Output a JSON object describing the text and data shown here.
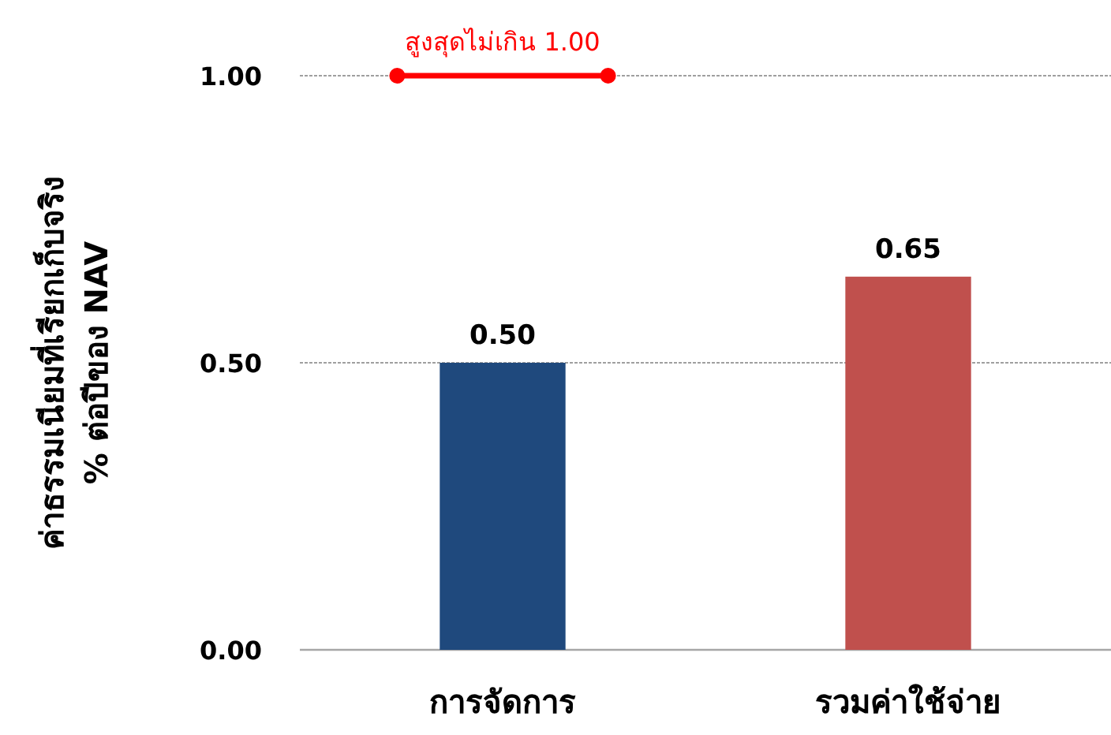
{
  "chart_data": {
    "type": "bar",
    "ylabel": "ค่าธรรมเนียมที่เรียกเก็บจริง\n% ต่อปีของ NAV",
    "categories": [
      "การจัดการ",
      "รวมค่าใช้จ่าย"
    ],
    "values": [
      0.5,
      0.65
    ],
    "colors": [
      "#1f497d",
      "#c0504d"
    ],
    "ylim": [
      0,
      1
    ],
    "yticks": [
      {
        "value": 0,
        "label": "0.00"
      },
      {
        "value": 0.5,
        "label": "0.50"
      },
      {
        "value": 1,
        "label": "1.00"
      }
    ],
    "grid": "y",
    "value_labels": [
      "0.50",
      "0.65"
    ],
    "ref_lines": [
      {
        "axis": "y",
        "value": 1,
        "label": "สูงสุดไม่เกิน 1.00",
        "color": "#ff0000"
      }
    ]
  }
}
